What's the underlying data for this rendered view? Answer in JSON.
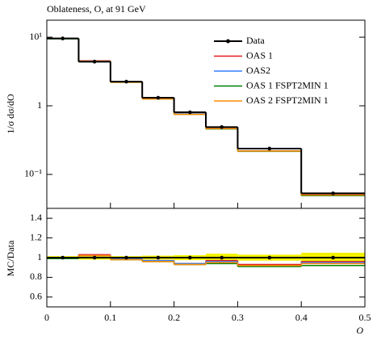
{
  "chart_data": [
    {
      "type": "histogram",
      "title": "Oblateness, O, at 91 GeV",
      "ylabel": "1/σ dσ/dO",
      "bins": [
        0,
        0.05,
        0.1,
        0.15,
        0.2,
        0.25,
        0.3,
        0.4,
        0.5
      ],
      "xlim": [
        0,
        0.5
      ],
      "log_y": true,
      "ylim": [
        0.032,
        17.7
      ],
      "yticks": [
        {
          "value": 0.1,
          "label": "10⁻¹"
        },
        1,
        {
          "value": 10,
          "label": "10¹"
        }
      ],
      "legend": "upper-right",
      "series": [
        {
          "name": "Data",
          "color": "#000000",
          "marker": true,
          "values": [
            9.6,
            4.4,
            2.25,
            1.31,
            0.805,
            0.49,
            0.238,
            0.053
          ]
        },
        {
          "name": "OAS 1",
          "color": "#e41a1c",
          "values": [
            9.6,
            4.53,
            2.23,
            1.27,
            0.76,
            0.475,
            0.221,
            0.051
          ]
        },
        {
          "name": "OAS2",
          "color": "#377eff",
          "values": [
            9.6,
            4.49,
            2.23,
            1.27,
            0.76,
            0.47,
            0.219,
            0.05
          ]
        },
        {
          "name": "OAS 1 FSPT2MIN 1",
          "color": "#008000",
          "values": [
            9.5,
            4.4,
            2.2,
            1.26,
            0.75,
            0.46,
            0.217,
            0.049
          ]
        },
        {
          "name": "OAS 2 FSPT2MIN 1",
          "color": "#ff8c00",
          "values": [
            9.6,
            4.49,
            2.2,
            1.26,
            0.75,
            0.465,
            0.219,
            0.05
          ]
        }
      ]
    },
    {
      "type": "histogram",
      "ylabel": "MC/Data",
      "xlabel": "O",
      "bins": [
        0,
        0.05,
        0.1,
        0.15,
        0.2,
        0.25,
        0.3,
        0.4,
        0.5
      ],
      "xlim": [
        0,
        0.5
      ],
      "xticks": [
        0,
        0.1,
        0.2,
        0.3,
        0.4,
        0.5
      ],
      "ylim": [
        0.5,
        1.5
      ],
      "yticks": [
        0.6,
        0.8,
        1,
        1.2,
        1.4
      ],
      "band_color": "#f2f200",
      "series": [
        {
          "color": "#000000",
          "marker": true,
          "values": [
            1,
            1,
            1,
            1,
            1,
            1,
            1,
            1
          ],
          "errors": [
            0.015,
            0.02,
            0.015,
            0.02,
            0.025,
            0.04,
            0.03,
            0.05
          ]
        },
        {
          "color": "#e41a1c",
          "values": [
            1.0,
            1.03,
            0.99,
            0.97,
            0.94,
            0.97,
            0.93,
            0.96
          ]
        },
        {
          "color": "#377eff",
          "values": [
            1.0,
            1.02,
            0.99,
            0.97,
            0.94,
            0.96,
            0.92,
            0.95
          ]
        },
        {
          "color": "#008000",
          "values": [
            0.99,
            1.0,
            0.98,
            0.96,
            0.93,
            0.94,
            0.91,
            0.92
          ]
        },
        {
          "color": "#ff8c00",
          "values": [
            1.0,
            1.02,
            0.98,
            0.96,
            0.93,
            0.95,
            0.92,
            0.94
          ]
        }
      ]
    }
  ]
}
